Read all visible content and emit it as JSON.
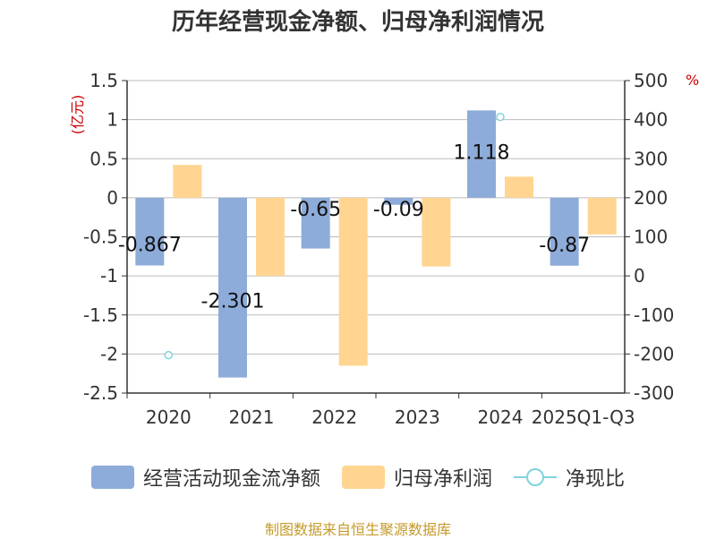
{
  "title": "历年经营现金净额、归母净利润情况",
  "unit_left": "(亿元)",
  "unit_right": "%",
  "source": "制图数据来自恒生聚源数据库",
  "colors": {
    "cash": "#8eacd9",
    "profit": "#ffd591",
    "ratio": "#7fd3dd",
    "axis": "#333333",
    "grid": "#bbbbbb"
  },
  "chart_data": {
    "type": "bar",
    "title": "历年经营现金净额、归母净利润情况",
    "categories": [
      "2020",
      "2021",
      "2022",
      "2023",
      "2024",
      "2025Q1-Q3"
    ],
    "series": [
      {
        "name": "经营活动现金流净额",
        "type": "bar",
        "axis": "left",
        "values": [
          -0.867,
          -2.301,
          -0.65,
          -0.09,
          1.118,
          -0.87
        ],
        "labels": [
          "-0.867",
          "-2.301",
          "-0.65",
          "-0.09",
          "1.118",
          "-0.87"
        ]
      },
      {
        "name": "归母净利润",
        "type": "bar",
        "axis": "left",
        "values": [
          0.42,
          -1.0,
          -2.15,
          -0.88,
          0.27,
          -0.47
        ]
      },
      {
        "name": "净现比",
        "type": "scatter",
        "axis": "right",
        "values": [
          -203,
          null,
          null,
          null,
          407,
          null
        ]
      }
    ],
    "y_left": {
      "min": -2.5,
      "max": 1.5,
      "ticks": [
        "1.5",
        "1",
        "0.5",
        "0",
        "-0.5",
        "-1",
        "-1.5",
        "-2",
        "-2.5"
      ]
    },
    "y_right": {
      "min": -300,
      "max": 500,
      "ticks": [
        "500",
        "400",
        "300",
        "200",
        "100",
        "0",
        "-100",
        "-200",
        "-300"
      ]
    },
    "grid": true,
    "legend_position": "bottom"
  }
}
